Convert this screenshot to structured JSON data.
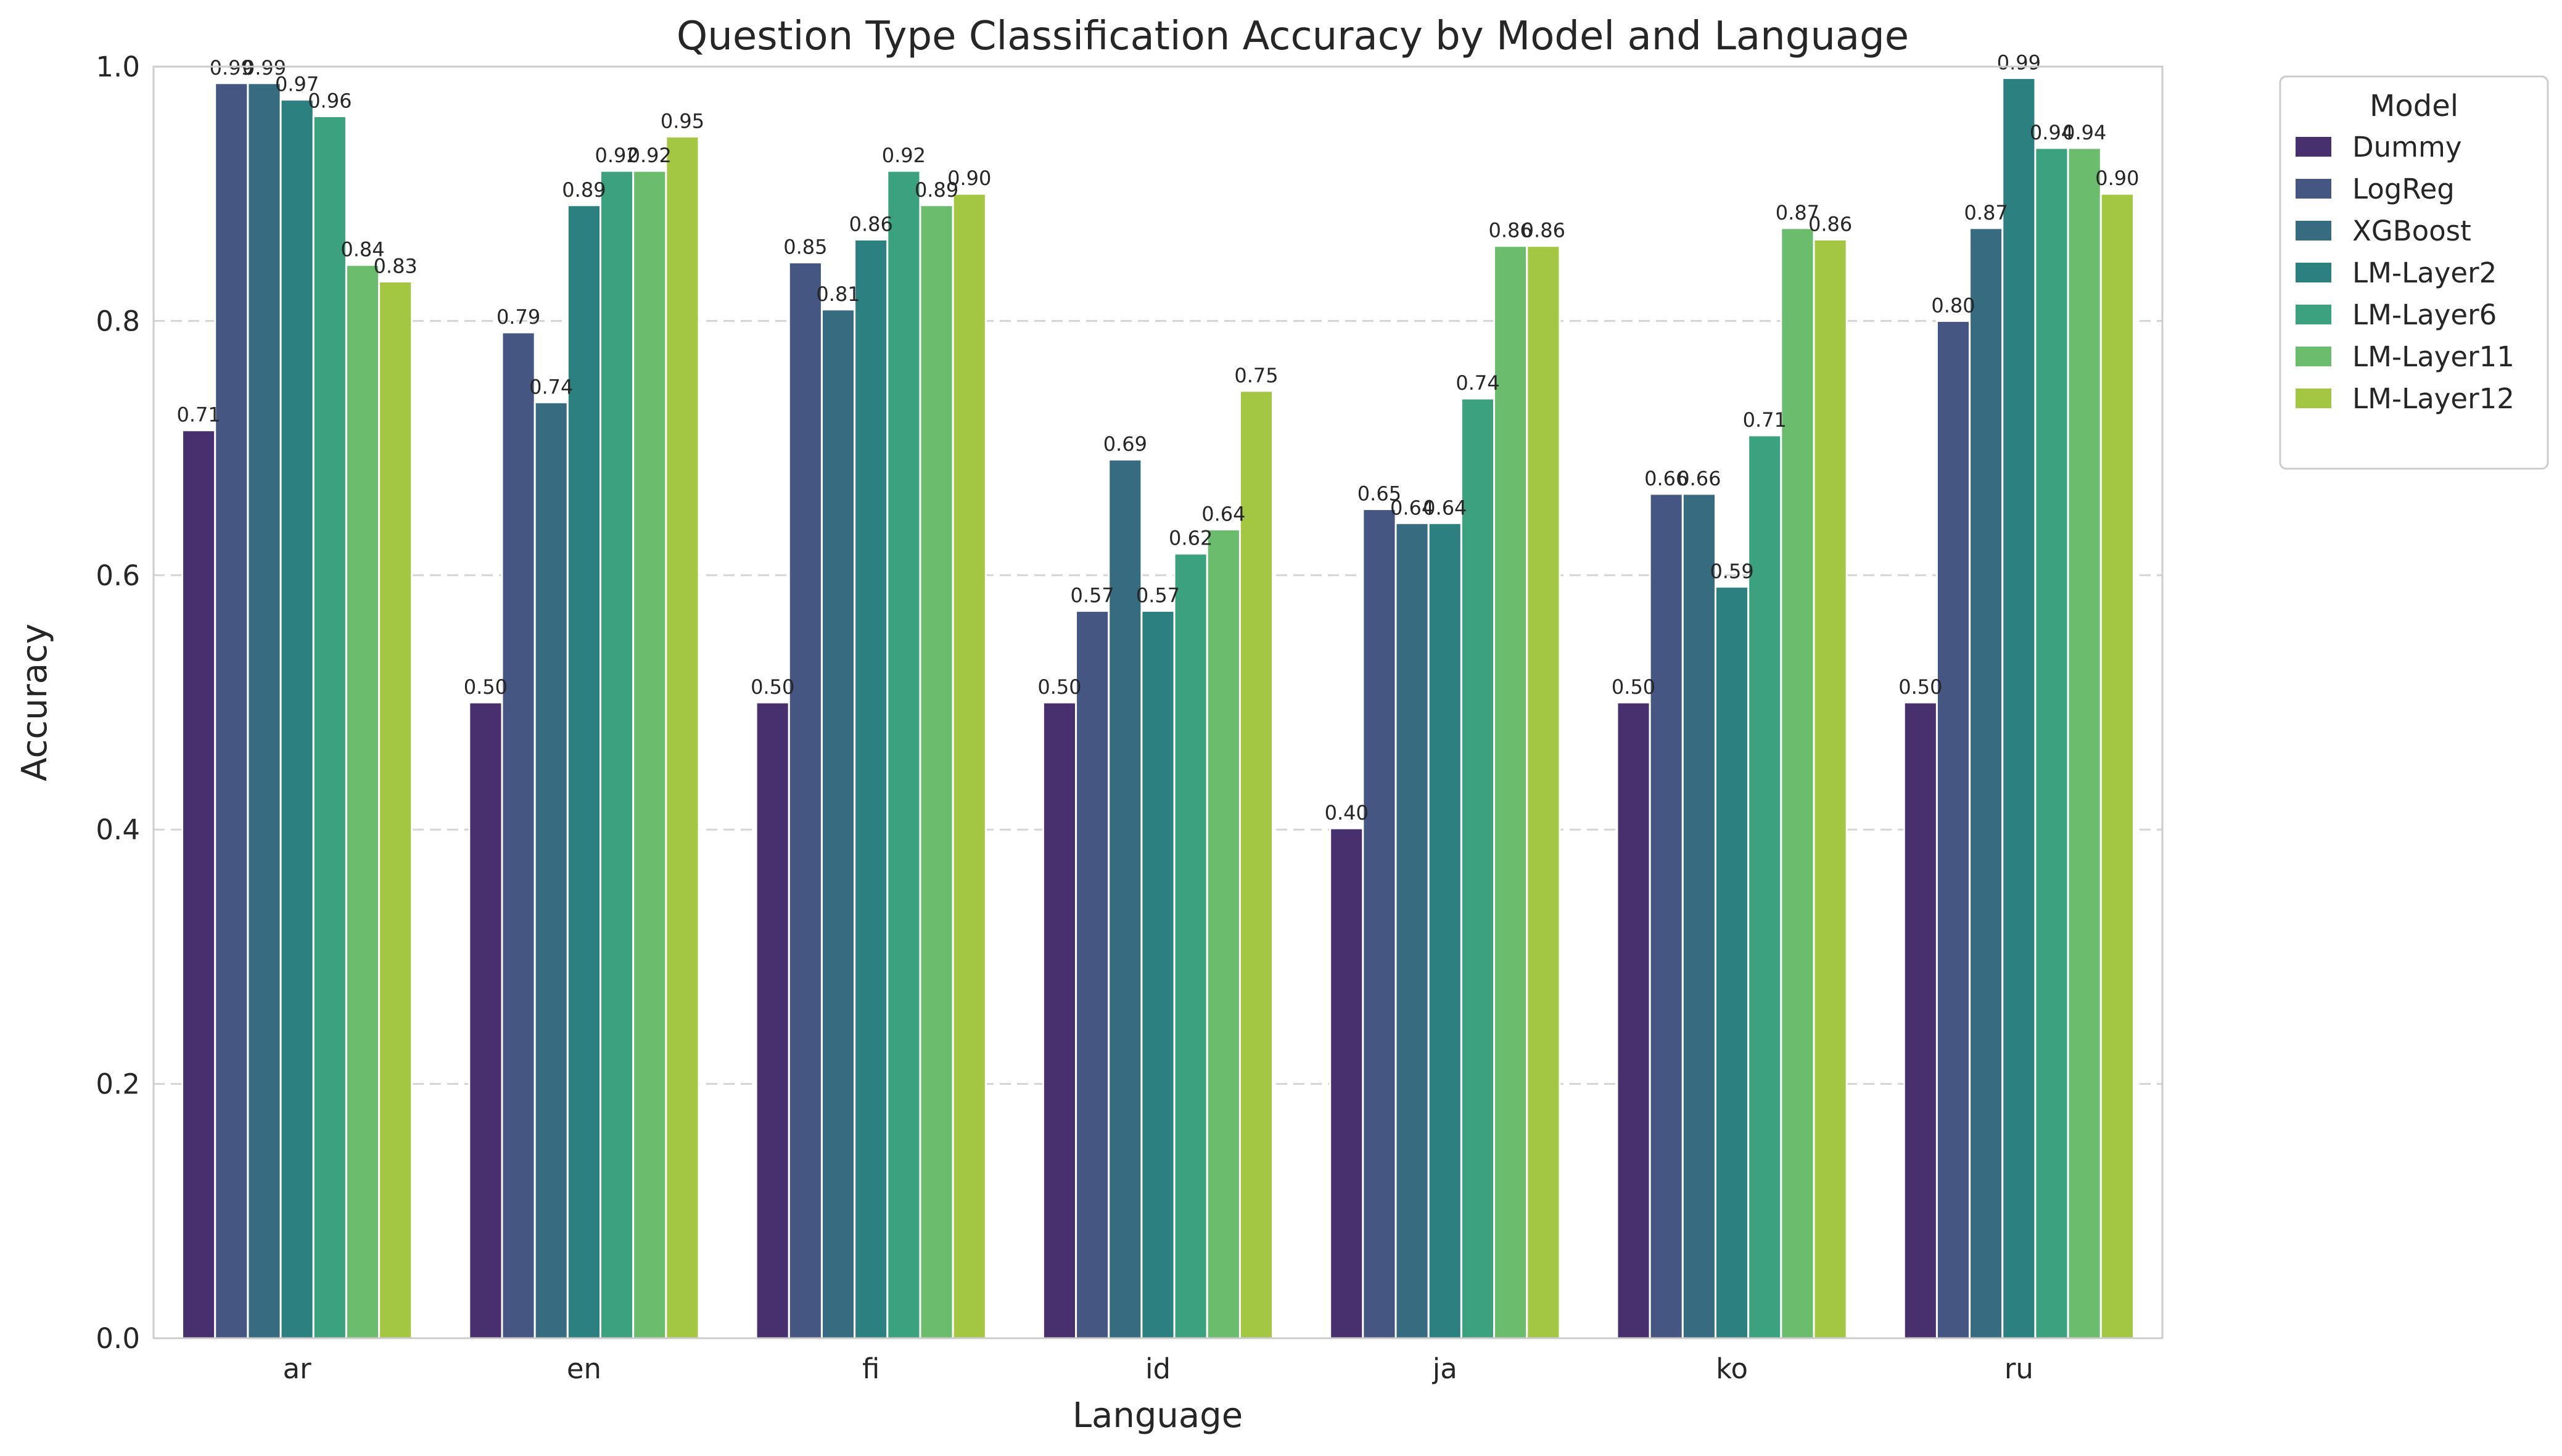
{
  "chart_data": {
    "type": "bar",
    "title": "Question Type Classification Accuracy by Model and Language",
    "xlabel": "Language",
    "ylabel": "Accuracy",
    "ylim": [
      0,
      1.0
    ],
    "yticks": [
      "0.0",
      "0.2",
      "0.4",
      "0.6",
      "0.8",
      "1.0"
    ],
    "categories": [
      "ar",
      "en",
      "fi",
      "id",
      "ja",
      "ko",
      "ru"
    ],
    "legend": {
      "title": "Model",
      "placement": "outside-top-right"
    },
    "grid": {
      "y": true,
      "style": "dashed"
    },
    "series": [
      {
        "name": "Dummy",
        "color": "#482f6e",
        "values": [
          0.714,
          0.5,
          0.5,
          0.5,
          0.401,
          0.5,
          0.5
        ],
        "labels": [
          "0.71",
          "0.50",
          "0.50",
          "0.50",
          "0.40",
          "0.50",
          "0.50"
        ]
      },
      {
        "name": "LogReg",
        "color": "#445681",
        "values": [
          0.987,
          0.791,
          0.846,
          0.572,
          0.652,
          0.664,
          0.8
        ],
        "labels": [
          "0.99",
          "0.79",
          "0.85",
          "0.57",
          "0.65",
          "0.66",
          "0.80"
        ]
      },
      {
        "name": "XGBoost",
        "color": "#366b80",
        "values": [
          0.987,
          0.736,
          0.809,
          0.691,
          0.641,
          0.664,
          0.873
        ],
        "labels": [
          "0.99",
          "0.74",
          "0.81",
          "0.69",
          "0.64",
          "0.66",
          "0.87"
        ]
      },
      {
        "name": "LM-Layer2",
        "color": "#2c8180",
        "values": [
          0.974,
          0.891,
          0.864,
          0.572,
          0.641,
          0.591,
          0.991
        ],
        "labels": [
          "0.97",
          "0.89",
          "0.86",
          "0.57",
          "0.64",
          "0.59",
          "0.99"
        ]
      },
      {
        "name": "LM-Layer6",
        "color": "#3ca17f",
        "values": [
          0.961,
          0.918,
          0.918,
          0.617,
          0.739,
          0.71,
          0.936
        ],
        "labels": [
          "0.96",
          "0.92",
          "0.92",
          "0.62",
          "0.74",
          "0.71",
          "0.94"
        ]
      },
      {
        "name": "LM-Layer11",
        "color": "#6bbc6c",
        "values": [
          0.844,
          0.918,
          0.891,
          0.636,
          0.859,
          0.873,
          0.936
        ],
        "labels": [
          "0.84",
          "0.92",
          "0.89",
          "0.64",
          "0.86",
          "0.87",
          "0.94"
        ]
      },
      {
        "name": "LM-Layer12",
        "color": "#a4c743",
        "values": [
          0.831,
          0.945,
          0.9,
          0.745,
          0.859,
          0.864,
          0.9
        ],
        "labels": [
          "0.83",
          "0.95",
          "0.90",
          "0.75",
          "0.86",
          "0.86",
          "0.90"
        ]
      }
    ]
  }
}
